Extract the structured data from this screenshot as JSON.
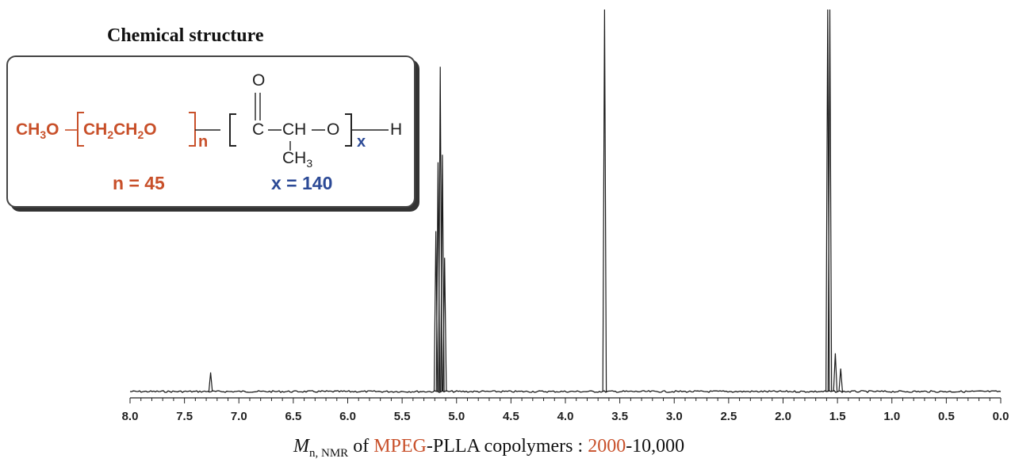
{
  "structure": {
    "title": "Chemical structure",
    "formula": {
      "left": "CH",
      "left_sub": "3",
      "left_o": "O",
      "repeat1": "CH",
      "repeat1_sub": "2",
      "repeat1_b": "CH",
      "repeat1_sub2": "2",
      "repeat1_o": "O",
      "n_label": "n",
      "carbonyl_o": "O",
      "c": "C",
      "ch": "CH",
      "o2": "O",
      "x_label": "x",
      "h": "H",
      "methyl": "CH",
      "methyl_sub": "3"
    },
    "n_value": "n = 45",
    "x_value": "x = 140",
    "colors": {
      "peg": "#c8502a",
      "pla": "#2c4a96"
    }
  },
  "caption": {
    "mn": "M",
    "mn_sub": "n, NMR",
    "of": " of ",
    "mpeg": "MPEG",
    "rest": "-PLLA copolymers : ",
    "range_start": "2000",
    "range_end": "-10,000"
  },
  "chart_data": {
    "type": "line",
    "x_axis_reversed": true,
    "xlim": [
      8.0,
      0.0
    ],
    "x_ticks": [
      "8.0",
      "7.5",
      "7.0",
      "6.5",
      "6.0",
      "5.5",
      "5.0",
      "4.5",
      "4.0",
      "3.5",
      "3.0",
      "2.5",
      "2.0",
      "1.5",
      "1.0",
      "0.5",
      "0.0"
    ],
    "x_tick_values": [
      8.0,
      7.5,
      7.0,
      6.5,
      6.0,
      5.5,
      5.0,
      4.5,
      4.0,
      3.5,
      3.0,
      2.5,
      2.0,
      1.5,
      1.0,
      0.5,
      0.0
    ],
    "peaks": [
      {
        "ppm": 7.26,
        "height": 0.05
      },
      {
        "ppm": 5.19,
        "height": 0.42
      },
      {
        "ppm": 5.17,
        "height": 0.6
      },
      {
        "ppm": 5.15,
        "height": 0.85
      },
      {
        "ppm": 5.13,
        "height": 0.62
      },
      {
        "ppm": 5.11,
        "height": 0.35
      },
      {
        "ppm": 3.64,
        "height": 1.0
      },
      {
        "ppm": 1.59,
        "height": 1.0
      },
      {
        "ppm": 1.57,
        "height": 1.0
      },
      {
        "ppm": 1.52,
        "height": 0.1
      },
      {
        "ppm": 1.47,
        "height": 0.06
      }
    ],
    "grid": false
  }
}
